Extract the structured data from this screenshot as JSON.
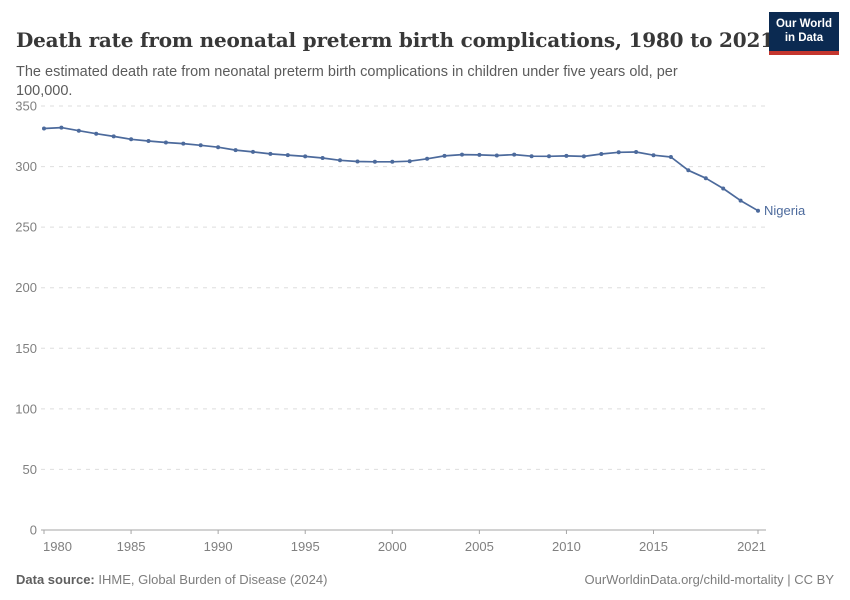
{
  "header": {
    "title": "Death rate from neonatal preterm birth complications, 1980 to 2021",
    "subtitle": "The estimated death rate from neonatal preterm birth complications in children under five years old, per 100,000.",
    "logo": {
      "line1": "Our World",
      "line2": "in Data"
    }
  },
  "footer": {
    "source_label": "Data source:",
    "source_text": " IHME, Global Burden of Disease (2024)",
    "credit": "OurWorldinData.org/child-mortality | CC BY"
  },
  "colors": {
    "line": "#4C6A9C",
    "grid": "#dedede",
    "axis": "#a5a5a5",
    "tick_text": "#808080",
    "logo_bg": "#0b2a51",
    "logo_red": "#c4362e"
  },
  "chart_data": {
    "type": "line",
    "title": "Death rate from neonatal preterm birth complications, 1980 to 2021",
    "xlabel": "",
    "ylabel": "",
    "xlim": [
      1980,
      2021
    ],
    "ylim": [
      0,
      350
    ],
    "grid": true,
    "grid_style": "dashed",
    "legend_position": "end-of-line-label",
    "x_ticks": [
      1980,
      1985,
      1990,
      1995,
      2000,
      2005,
      2010,
      2015,
      2021
    ],
    "y_ticks": [
      0,
      50,
      100,
      150,
      200,
      250,
      300,
      350
    ],
    "series": [
      {
        "name": "Nigeria",
        "color": "#4C6A9C",
        "x": [
          1980,
          1981,
          1982,
          1983,
          1984,
          1985,
          1986,
          1987,
          1988,
          1989,
          1990,
          1991,
          1992,
          1993,
          1994,
          1995,
          1996,
          1997,
          1998,
          1999,
          2000,
          2001,
          2002,
          2003,
          2004,
          2005,
          2006,
          2007,
          2008,
          2009,
          2010,
          2011,
          2012,
          2013,
          2014,
          2015,
          2016,
          2017,
          2018,
          2019,
          2020,
          2021
        ],
        "values": [
          331.4,
          332.2,
          329.6,
          327.1,
          324.9,
          322.5,
          321.1,
          319.9,
          319.0,
          317.6,
          316.0,
          313.6,
          312.1,
          310.5,
          309.5,
          308.4,
          307.1,
          305.2,
          304.2,
          303.9,
          303.9,
          304.4,
          306.4,
          308.8,
          309.9,
          309.6,
          309.1,
          309.9,
          308.6,
          308.5,
          308.8,
          308.4,
          310.4,
          311.8,
          312.0,
          309.4,
          307.9,
          296.9,
          290.4,
          281.9,
          271.9,
          263.6
        ]
      }
    ],
    "end_label": "Nigeria"
  }
}
